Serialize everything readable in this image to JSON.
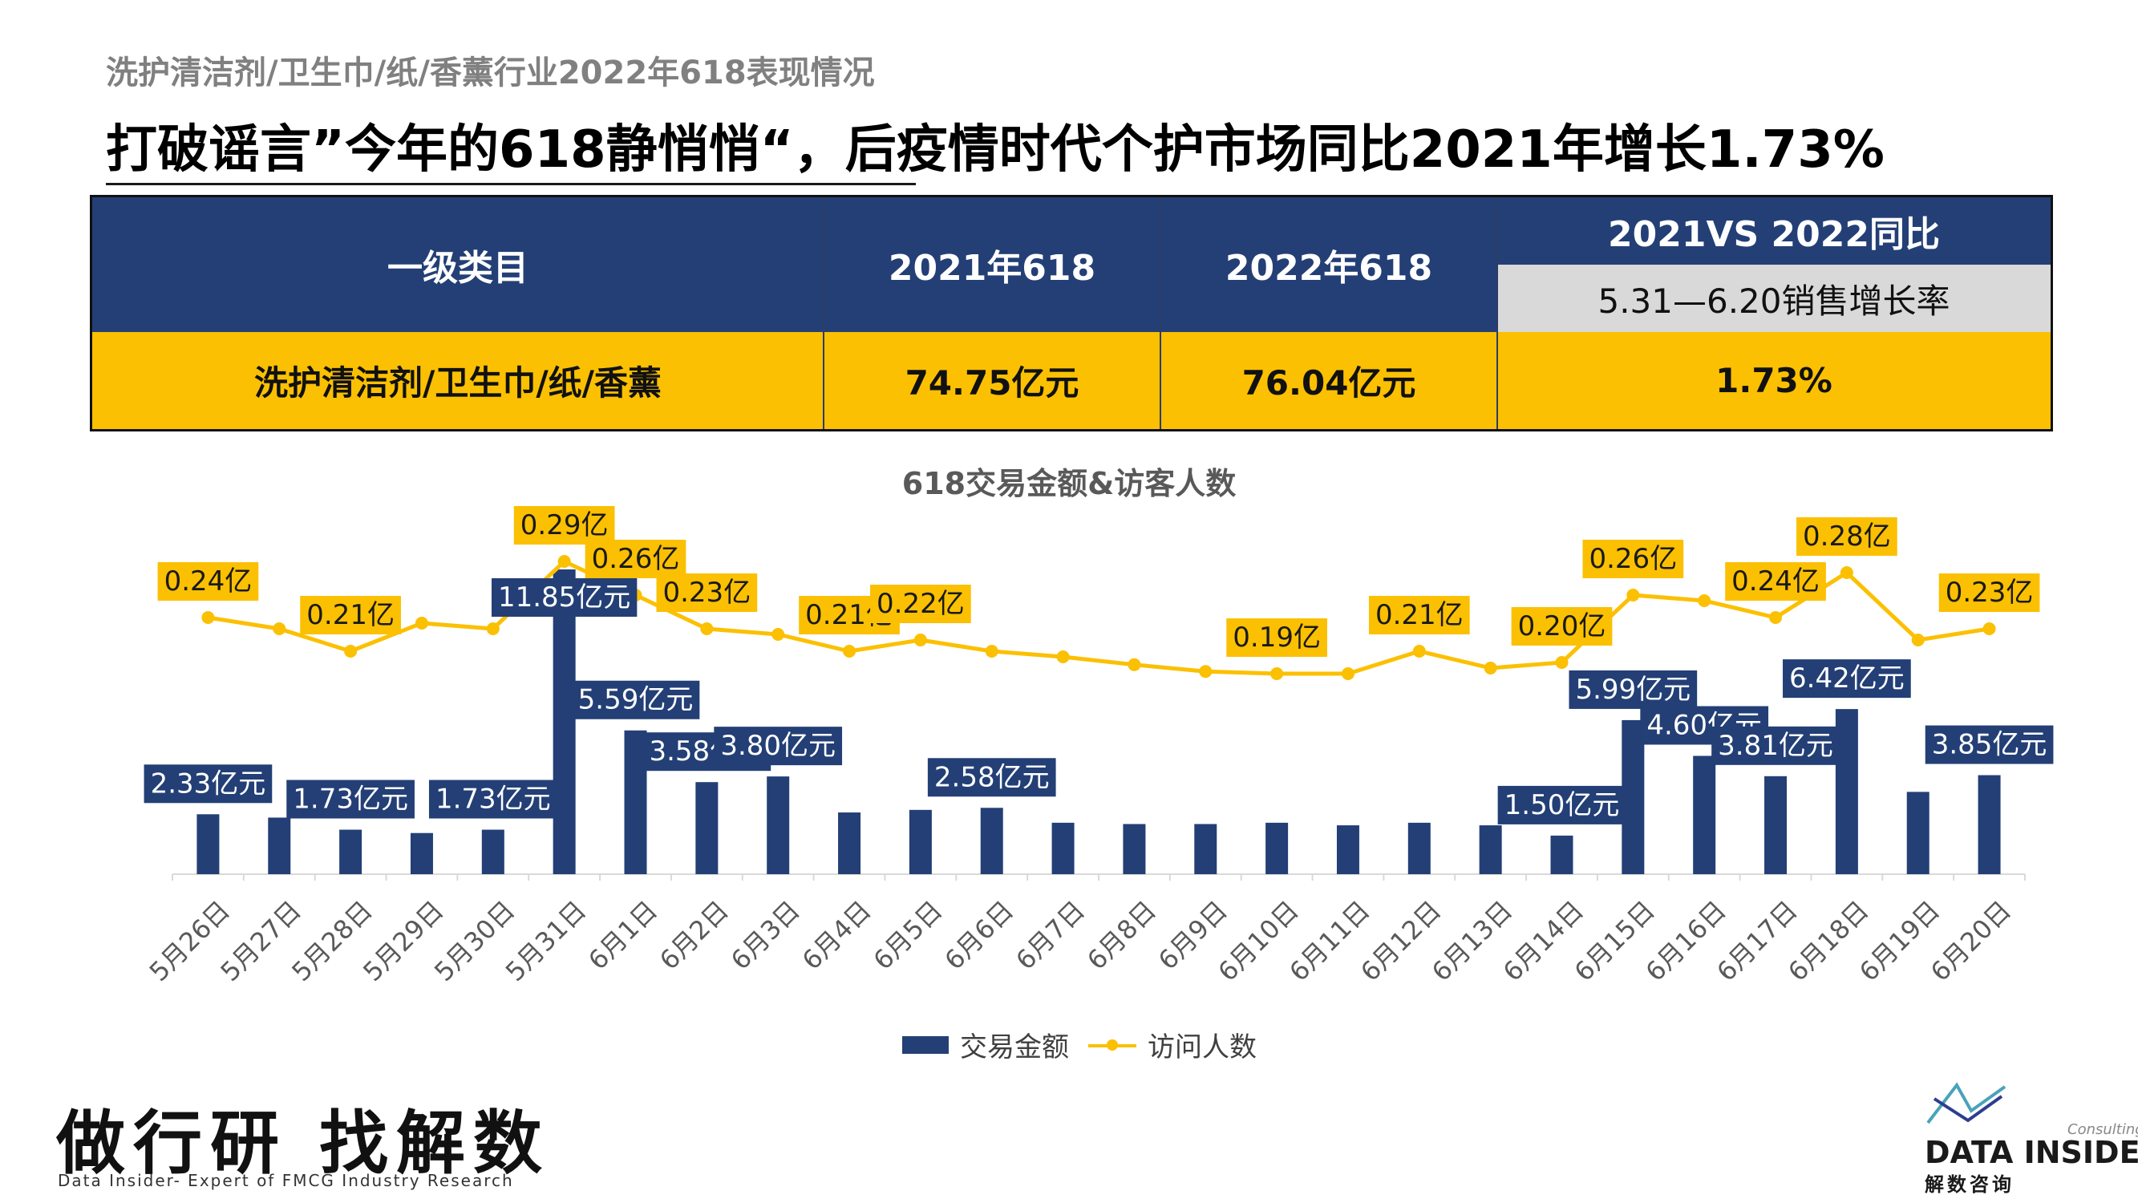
{
  "header": {
    "eyebrow": "洗护清洁剂/卫生巾/纸/香薰行业2022年618表现情况",
    "title": "打破谣言”今年的618静悄悄“，后疫情时代个护市场同比2021年增长1.73%"
  },
  "table": {
    "col_category": "一级类目",
    "col_2021": "2021年618",
    "col_2022": "2022年618",
    "col_yoy": "2021VS 2022同比",
    "col_yoy_sub": "5.31—6.20销售增长率",
    "row": {
      "category": "洗护清洁剂/卫生巾/纸/香薰",
      "v2021": "74.75亿元",
      "v2022": "76.04亿元",
      "yoy": "1.73%"
    }
  },
  "chart_data": {
    "type": "bar",
    "title": "618交易金额&访客人数",
    "categories": [
      "5月26日",
      "5月27日",
      "5月28日",
      "5月29日",
      "5月30日",
      "5月31日",
      "6月1日",
      "6月2日",
      "6月3日",
      "6月4日",
      "6月5日",
      "6月6日",
      "6月7日",
      "6月8日",
      "6月9日",
      "6月10日",
      "6月11日",
      "6月12日",
      "6月13日",
      "6月14日",
      "6月15日",
      "6月16日",
      "6月17日",
      "6月18日",
      "6月19日",
      "6月20日"
    ],
    "series": [
      {
        "name": "交易金额",
        "type": "bar",
        "values": [
          2.33,
          2.2,
          1.73,
          1.6,
          1.73,
          11.85,
          5.59,
          3.58,
          3.8,
          2.4,
          2.5,
          2.58,
          2.0,
          1.95,
          1.95,
          2.0,
          1.9,
          2.0,
          1.9,
          1.5,
          5.99,
          4.6,
          3.81,
          6.42,
          3.2,
          3.85
        ],
        "labels": [
          "2.33亿元",
          "",
          "1.73亿元",
          "",
          "1.73亿元",
          "11.85亿元",
          "5.59亿元",
          "3.58亿元",
          "3.80亿元",
          "",
          "",
          "2.58亿元",
          "",
          "",
          "",
          "",
          "",
          "",
          "",
          "1.50亿元",
          "5.99亿元",
          "4.60亿元",
          "3.81亿元",
          "6.42亿元",
          "",
          "3.85亿元"
        ]
      },
      {
        "name": "访问人数",
        "type": "line",
        "values": [
          0.24,
          0.23,
          0.21,
          0.235,
          0.23,
          0.29,
          0.26,
          0.23,
          0.225,
          0.21,
          0.22,
          0.21,
          0.205,
          0.198,
          0.192,
          0.19,
          0.19,
          0.21,
          0.195,
          0.2,
          0.26,
          0.255,
          0.24,
          0.28,
          0.22,
          0.23
        ],
        "labels": [
          "0.24亿",
          "",
          "0.21亿",
          "",
          "",
          "0.29亿",
          "0.26亿",
          "0.23亿",
          "",
          "0.21亿",
          "0.22亿",
          "",
          "",
          "",
          "",
          "0.19亿",
          "",
          "0.21亿",
          "",
          "0.20亿",
          "0.26亿",
          "",
          "0.24亿",
          "0.28亿",
          "",
          "0.23亿"
        ]
      }
    ],
    "legend": [
      "交易金额",
      "访问人数"
    ],
    "legend_position": "bottom",
    "grid": false,
    "colors": {
      "bar": "#233f76",
      "line": "#fbc002"
    }
  },
  "footer": {
    "slogan": "做行研 找解数",
    "slogan_sub": "Data Insider- Expert of FMCG Industry Research",
    "logo_consulting": "Consulting",
    "logo_name": "DATA INSIDER",
    "logo_cn": "解数咨询"
  }
}
